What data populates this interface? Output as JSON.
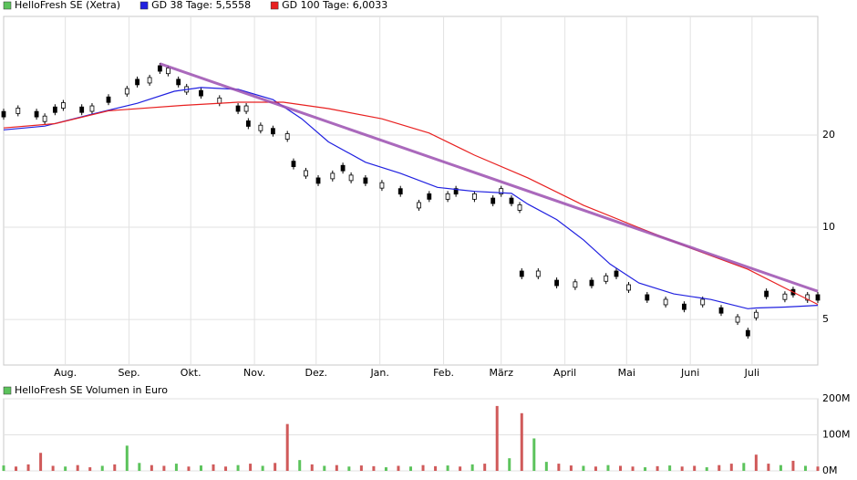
{
  "chart_data": [
    {
      "type": "price",
      "log_y": true,
      "grid": true,
      "xlim": [
        0,
        396
      ],
      "ylim": [
        3.55,
        48.8
      ],
      "yticks": [
        5,
        10,
        20
      ],
      "xticks": [
        {
          "value": 30,
          "label": "Aug."
        },
        {
          "value": 61,
          "label": "Sep."
        },
        {
          "value": 91,
          "label": "Okt."
        },
        {
          "value": 122,
          "label": "Nov."
        },
        {
          "value": 152,
          "label": "Dez."
        },
        {
          "value": 183,
          "label": "Jan."
        },
        {
          "value": 214,
          "label": "Feb."
        },
        {
          "value": 242,
          "label": "März"
        },
        {
          "value": 273,
          "label": "April"
        },
        {
          "value": 303,
          "label": "Mai"
        },
        {
          "value": 334,
          "label": "Juni"
        },
        {
          "value": 364,
          "label": "Juli"
        }
      ],
      "series": [
        {
          "name": "HelloFresh SE (Xetra)",
          "style": "candle",
          "color": "#000000",
          "legend_color": "#5cc35c",
          "x": [
            0,
            7,
            16,
            20,
            25,
            29,
            38,
            43,
            51,
            60,
            65,
            71,
            76,
            80,
            85,
            89,
            96,
            105,
            114,
            118,
            119,
            125,
            131,
            138,
            141,
            147,
            153,
            160,
            165,
            169,
            176,
            184,
            193,
            202,
            207,
            216,
            220,
            229,
            238,
            242,
            247,
            251,
            252,
            260,
            269,
            278,
            286,
            293,
            298,
            304,
            313,
            322,
            331,
            340,
            349,
            357,
            362,
            366,
            371,
            380,
            384,
            391,
            396
          ],
          "values": [
            23.4,
            24.0,
            23.4,
            22.6,
            24.2,
            25.0,
            24.2,
            24.4,
            26.1,
            27.8,
            29.8,
            30.2,
            33.0,
            32.4,
            29.8,
            28.2,
            27.4,
            25.9,
            24.4,
            24.4,
            21.8,
            21.1,
            20.6,
            19.8,
            16.1,
            15.0,
            14.2,
            14.7,
            15.6,
            14.5,
            14.2,
            13.7,
            13.1,
            11.8,
            12.6,
            12.6,
            13.1,
            12.6,
            12.2,
            13.1,
            12.2,
            11.6,
            7.05,
            7.05,
            6.58,
            6.5,
            6.58,
            6.8,
            7.05,
            6.36,
            5.9,
            5.7,
            5.5,
            5.7,
            5.35,
            5.0,
            4.51,
            5.17,
            6.06,
            5.93,
            6.14,
            5.9,
            5.9
          ]
        },
        {
          "name": "GD 38 Tage: 5,5558",
          "style": "line",
          "color": "#2020e0",
          "x": [
            0,
            20,
            43,
            65,
            83,
            96,
            114,
            131,
            145,
            158,
            176,
            193,
            211,
            229,
            247,
            255,
            269,
            282,
            295,
            309,
            326,
            344,
            362,
            366,
            380,
            396
          ],
          "values": [
            20.8,
            21.4,
            23.4,
            25.4,
            27.8,
            28.6,
            28.2,
            26.1,
            22.6,
            19.0,
            16.3,
            15.0,
            13.5,
            13.1,
            12.9,
            11.9,
            10.6,
            9.1,
            7.58,
            6.58,
            6.06,
            5.81,
            5.42,
            5.45,
            5.49,
            5.56
          ]
        },
        {
          "name": "GD 100 Tage: 6,0033",
          "style": "line",
          "color": "#e82020",
          "x": [
            0,
            25,
            51,
            87,
            114,
            136,
            158,
            184,
            207,
            229,
            255,
            282,
            309,
            335,
            362,
            384,
            396
          ],
          "values": [
            21.1,
            21.8,
            24.0,
            25.0,
            25.6,
            25.6,
            24.4,
            22.6,
            20.3,
            17.2,
            14.5,
            11.8,
            9.97,
            8.5,
            7.29,
            6.14,
            5.6
          ]
        }
      ],
      "trendline": {
        "color": "#9b4fb0",
        "x": [
          76,
          396
        ],
        "values": [
          34.2,
          6.18
        ]
      }
    },
    {
      "type": "bar",
      "grid": true,
      "xlim": [
        0,
        396
      ],
      "ylim": [
        0,
        200000000
      ],
      "yticks": [
        {
          "value": 0,
          "label": "0M"
        },
        {
          "value": 100000000,
          "label": "100M"
        },
        {
          "value": 200000000,
          "label": "200M"
        }
      ],
      "series": [
        {
          "name": "HelloFresh SE Volumen in Euro",
          "legend_color": "#5cc35c",
          "up_color": "#5cc35c",
          "down_color": "#d05a5a",
          "x": [
            0,
            6,
            12,
            18,
            24,
            30,
            36,
            42,
            48,
            54,
            60,
            66,
            72,
            78,
            84,
            90,
            96,
            102,
            108,
            114,
            120,
            126,
            132,
            138,
            144,
            150,
            156,
            162,
            168,
            174,
            180,
            186,
            192,
            198,
            204,
            210,
            216,
            222,
            228,
            234,
            240,
            246,
            252,
            258,
            264,
            270,
            276,
            282,
            288,
            294,
            300,
            306,
            312,
            318,
            324,
            330,
            336,
            342,
            348,
            354,
            360,
            366,
            372,
            378,
            384,
            390,
            396
          ],
          "values": [
            15000000,
            12000000,
            18000000,
            50000000,
            14000000,
            12000000,
            16000000,
            10000000,
            14000000,
            18000000,
            70000000,
            22000000,
            16000000,
            14000000,
            20000000,
            12000000,
            15000000,
            18000000,
            12000000,
            16000000,
            20000000,
            14000000,
            22000000,
            130000000,
            30000000,
            18000000,
            14000000,
            16000000,
            12000000,
            15000000,
            13000000,
            10000000,
            14000000,
            12000000,
            16000000,
            13000000,
            15000000,
            12000000,
            18000000,
            20000000,
            180000000,
            35000000,
            160000000,
            90000000,
            25000000,
            20000000,
            15000000,
            14000000,
            12000000,
            16000000,
            14000000,
            12000000,
            10000000,
            13000000,
            15000000,
            12000000,
            14000000,
            10000000,
            16000000,
            20000000,
            22000000,
            45000000,
            20000000,
            16000000,
            28000000,
            14000000,
            12000000
          ],
          "rising": [
            true,
            false,
            false,
            false,
            false,
            true,
            false,
            false,
            true,
            false,
            true,
            true,
            false,
            false,
            true,
            false,
            true,
            false,
            false,
            true,
            false,
            true,
            false,
            false,
            true,
            false,
            true,
            false,
            true,
            false,
            false,
            true,
            false,
            true,
            false,
            false,
            true,
            false,
            true,
            false,
            false,
            true,
            false,
            true,
            true,
            false,
            false,
            true,
            false,
            true,
            false,
            false,
            true,
            false,
            true,
            false,
            false,
            true,
            false,
            false,
            true,
            false,
            false,
            true,
            false,
            true,
            false
          ]
        }
      ]
    }
  ]
}
